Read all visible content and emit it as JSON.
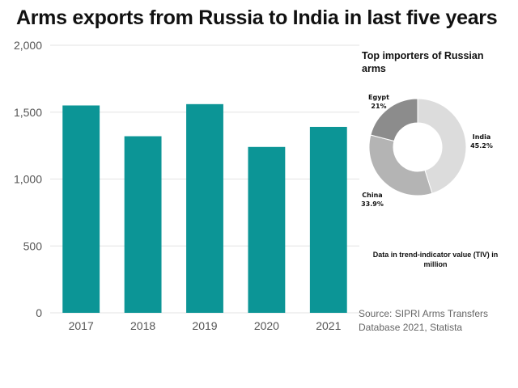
{
  "title": "Arms exports from Russia to India in last five years",
  "chart_data": [
    {
      "type": "bar",
      "title": "Arms exports from Russia to India in last five years",
      "categories": [
        "2017",
        "2018",
        "2019",
        "2020",
        "2021"
      ],
      "values": [
        1550,
        1320,
        1560,
        1240,
        1390
      ],
      "ylim": [
        0,
        2000
      ],
      "yticks": [
        0,
        500,
        1000,
        1500,
        2000
      ],
      "ytick_labels": [
        "0",
        "500",
        "1,000",
        "1,500",
        "2,000"
      ],
      "grid": true,
      "color": "#0c9596",
      "xlabel": "",
      "ylabel": ""
    },
    {
      "type": "pie",
      "title": "Top importers of Russian arms",
      "slices": [
        {
          "name": "India",
          "value": 45.2,
          "label": "45.2%",
          "color": "#dcdcdc"
        },
        {
          "name": "China",
          "value": 33.9,
          "label": "33.9%",
          "color": "#b4b4b4"
        },
        {
          "name": "Egypt",
          "value": 21,
          "label": "21%",
          "color": "#8c8c8c"
        }
      ],
      "donut": true
    }
  ],
  "note": "Data in trend-indicator value (TIV)  in million",
  "source": "Source: SIPRI Arms Transfers Database 2021, Statista"
}
